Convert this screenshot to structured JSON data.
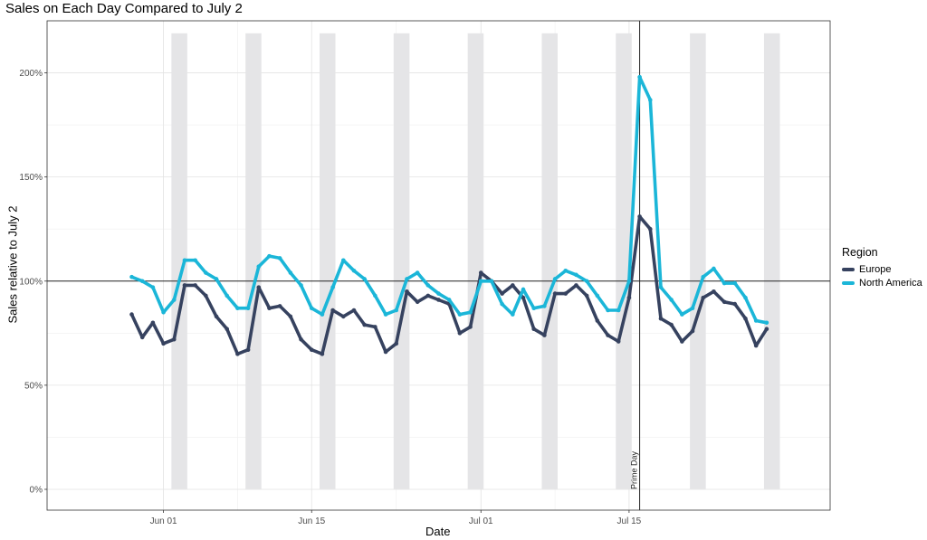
{
  "chart_data": {
    "type": "line",
    "title": "Sales on Each Day Compared to July 2",
    "xlabel": "Date",
    "ylabel": "Sales relative to July 2",
    "x_start_date": "2018-05-29",
    "xlim": [
      "2018-05-21",
      "2018-08-03"
    ],
    "ylim": [
      -10,
      225
    ],
    "x_ticks": [
      {
        "date": "2018-06-01",
        "label": "Jun 01"
      },
      {
        "date": "2018-06-15",
        "label": "Jun 15"
      },
      {
        "date": "2018-07-01",
        "label": "Jul 01"
      },
      {
        "date": "2018-07-15",
        "label": "Jul 15"
      }
    ],
    "y_ticks": [
      {
        "value": 0,
        "label": "0%"
      },
      {
        "value": 50,
        "label": "50%"
      },
      {
        "value": 100,
        "label": "100%"
      },
      {
        "value": 150,
        "label": "150%"
      },
      {
        "value": 200,
        "label": "200%"
      }
    ],
    "reference_hline": 100,
    "reference_vline": {
      "date": "2018-07-16",
      "label": "Prime Day"
    },
    "weekend_bands": [
      [
        "2018-06-02",
        "2018-06-03"
      ],
      [
        "2018-06-09",
        "2018-06-10"
      ],
      [
        "2018-06-16",
        "2018-06-17"
      ],
      [
        "2018-06-23",
        "2018-06-24"
      ],
      [
        "2018-06-30",
        "2018-07-01"
      ],
      [
        "2018-07-07",
        "2018-07-08"
      ],
      [
        "2018-07-14",
        "2018-07-15"
      ],
      [
        "2018-07-21",
        "2018-07-22"
      ],
      [
        "2018-07-28",
        "2018-07-29"
      ]
    ],
    "legend_title": "Region",
    "legend_position": "right",
    "series": [
      {
        "name": "Europe",
        "color": "#36425f",
        "values": [
          84,
          73,
          80,
          70,
          72,
          98,
          98,
          93,
          83,
          77,
          65,
          67,
          97,
          87,
          88,
          83,
          72,
          67,
          65,
          86,
          83,
          86,
          79,
          78,
          66,
          70,
          95,
          90,
          93,
          91,
          89,
          75,
          78,
          104,
          100,
          94,
          98,
          92,
          77,
          74,
          94,
          94,
          98,
          93,
          81,
          74,
          71,
          92,
          131,
          125,
          82,
          79,
          71,
          76,
          92,
          95,
          90,
          89,
          82,
          69,
          77
        ]
      },
      {
        "name": "North America",
        "color": "#1bb6d8",
        "values": [
          102,
          100,
          97,
          85,
          91,
          110,
          110,
          104,
          101,
          93,
          87,
          87,
          107,
          112,
          111,
          104,
          98,
          87,
          84,
          97,
          110,
          105,
          101,
          93,
          84,
          86,
          101,
          104,
          98,
          94,
          91,
          84,
          85,
          100,
          100,
          89,
          84,
          96,
          87,
          88,
          101,
          105,
          103,
          100,
          93,
          86,
          86,
          100,
          198,
          187,
          97,
          91,
          84,
          87,
          102,
          106,
          99,
          99,
          92,
          81,
          80
        ]
      }
    ]
  }
}
